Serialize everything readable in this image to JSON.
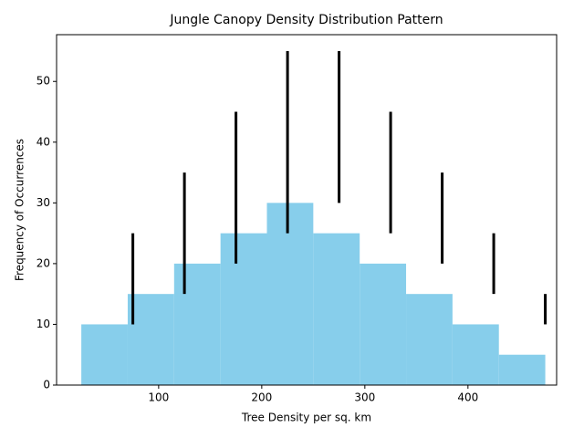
{
  "chart_data": {
    "type": "histogram",
    "title": "Jungle Canopy Density Distribution Pattern",
    "xlabel": "Tree Density per sq. km",
    "ylabel": "Frequency of Occurrences",
    "bins": [
      25,
      70,
      115,
      160,
      205,
      250,
      295,
      340,
      385,
      430,
      475
    ],
    "values": [
      10,
      15,
      20,
      25,
      30,
      25,
      20,
      15,
      10,
      5
    ],
    "color": "#87ceeb",
    "ranges": {
      "x": [
        75,
        125,
        175,
        225,
        275,
        325,
        375,
        425,
        475
      ],
      "low": [
        10,
        15,
        20,
        25,
        30,
        25,
        20,
        15,
        10
      ],
      "high": [
        25,
        35,
        45,
        55,
        55,
        45,
        35,
        25,
        15
      ],
      "color": "#000000"
    },
    "xlim": [
      1,
      486
    ],
    "ylim": [
      0,
      57.7
    ],
    "xticks": [
      100,
      200,
      300,
      400
    ],
    "yticks": [
      0,
      10,
      20,
      30,
      40,
      50
    ]
  }
}
